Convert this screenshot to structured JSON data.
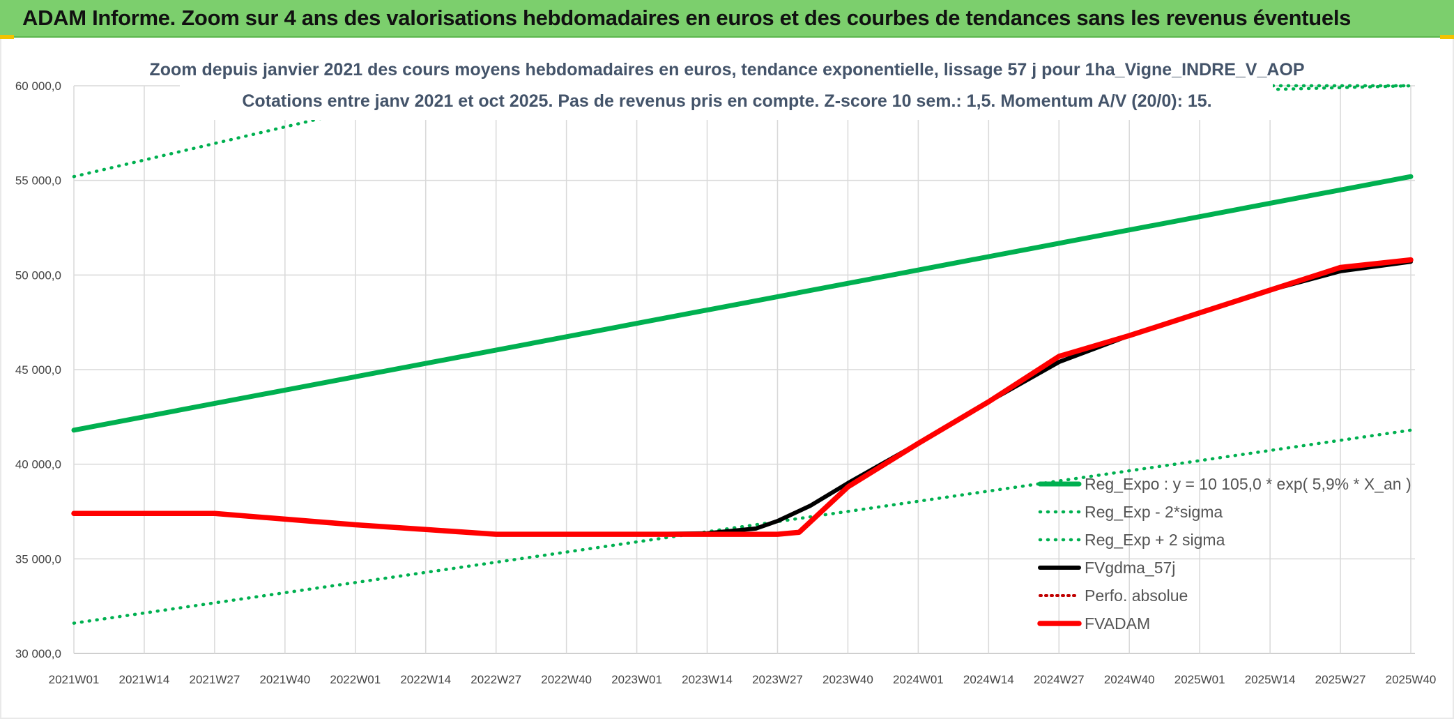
{
  "banner": {
    "title": "ADAM Informe. Zoom sur 4 ans des valorisations hebdomadaires en euros et des courbes de tendances sans les revenus éventuels"
  },
  "colors": {
    "banner_bg": "#7ccf6d",
    "trend": "#00b050",
    "fvgdma": "#000000",
    "fvadam": "#ff0000",
    "perfo": "#c00000"
  },
  "chart_data": {
    "type": "line",
    "title": "Zoom depuis janvier 2021 des cours moyens hebdomadaires en euros, tendance exponentielle, lissage 57 j pour 1ha_Vigne_INDRE_V_AOP",
    "subtitle": "Cotations entre janv 2021 et oct 2025. Pas de revenus pris en compte. Z-score 10 sem.: 1,5. Momentum A/V (20/0): 15.",
    "xlabel": "",
    "ylabel": "",
    "ylim": [
      30000,
      60000
    ],
    "y_ticks": [
      30000,
      35000,
      40000,
      45000,
      50000,
      55000,
      60000
    ],
    "y_tick_labels": [
      "30 000,0",
      "35 000,0",
      "40 000,0",
      "45 000,0",
      "50 000,0",
      "55 000,0",
      "60 000,0"
    ],
    "x_tick_labels": [
      "2021W01",
      "2021W14",
      "2021W27",
      "2021W40",
      "2022W01",
      "2022W14",
      "2022W27",
      "2022W40",
      "2023W01",
      "2023W14",
      "2023W27",
      "2023W40",
      "2024W01",
      "2024W14",
      "2024W27",
      "2024W40",
      "2025W01",
      "2025W14",
      "2025W27",
      "2025W40"
    ],
    "x_range": [
      0,
      247
    ],
    "legend_position": "right",
    "series": [
      {
        "name": "Reg_Expo : y = 10 105,0 * exp( 5,9% *  X_an )",
        "style": "trend",
        "x": [
          0,
          247
        ],
        "values": [
          41800,
          55200
        ]
      },
      {
        "name": "Reg_Exp - 2*sigma",
        "style": "band",
        "x": [
          0,
          247
        ],
        "values": [
          31600,
          41800
        ]
      },
      {
        "name": "Reg_Exp + 2 sigma",
        "style": "band",
        "x": [
          0,
          49,
          247
        ],
        "values": [
          55200,
          58500,
          60000
        ]
      },
      {
        "name": "FVgdma_57j",
        "style": "fvgdma",
        "x": [
          0,
          26,
          39,
          52,
          65,
          78,
          91,
          104,
          117,
          126,
          130,
          136,
          143,
          156,
          169,
          182,
          195,
          208,
          221,
          234,
          247
        ],
        "values": [
          37400,
          37400,
          37100,
          36800,
          36550,
          36300,
          36300,
          36300,
          36350,
          36600,
          37000,
          37800,
          39000,
          41100,
          43300,
          45400,
          46800,
          48000,
          49200,
          50200,
          50700
        ]
      },
      {
        "name": "Perfo. absolue",
        "style": "perfo",
        "x": [],
        "values": []
      },
      {
        "name": "FVADAM",
        "style": "fvadam",
        "x": [
          0,
          26,
          39,
          52,
          65,
          78,
          91,
          104,
          117,
          130,
          134,
          143,
          156,
          169,
          182,
          195,
          208,
          221,
          234,
          247
        ],
        "values": [
          37400,
          37400,
          37100,
          36800,
          36550,
          36300,
          36300,
          36300,
          36300,
          36300,
          36400,
          38800,
          41100,
          43300,
          45700,
          46800,
          48000,
          49200,
          50400,
          50800
        ]
      }
    ]
  }
}
